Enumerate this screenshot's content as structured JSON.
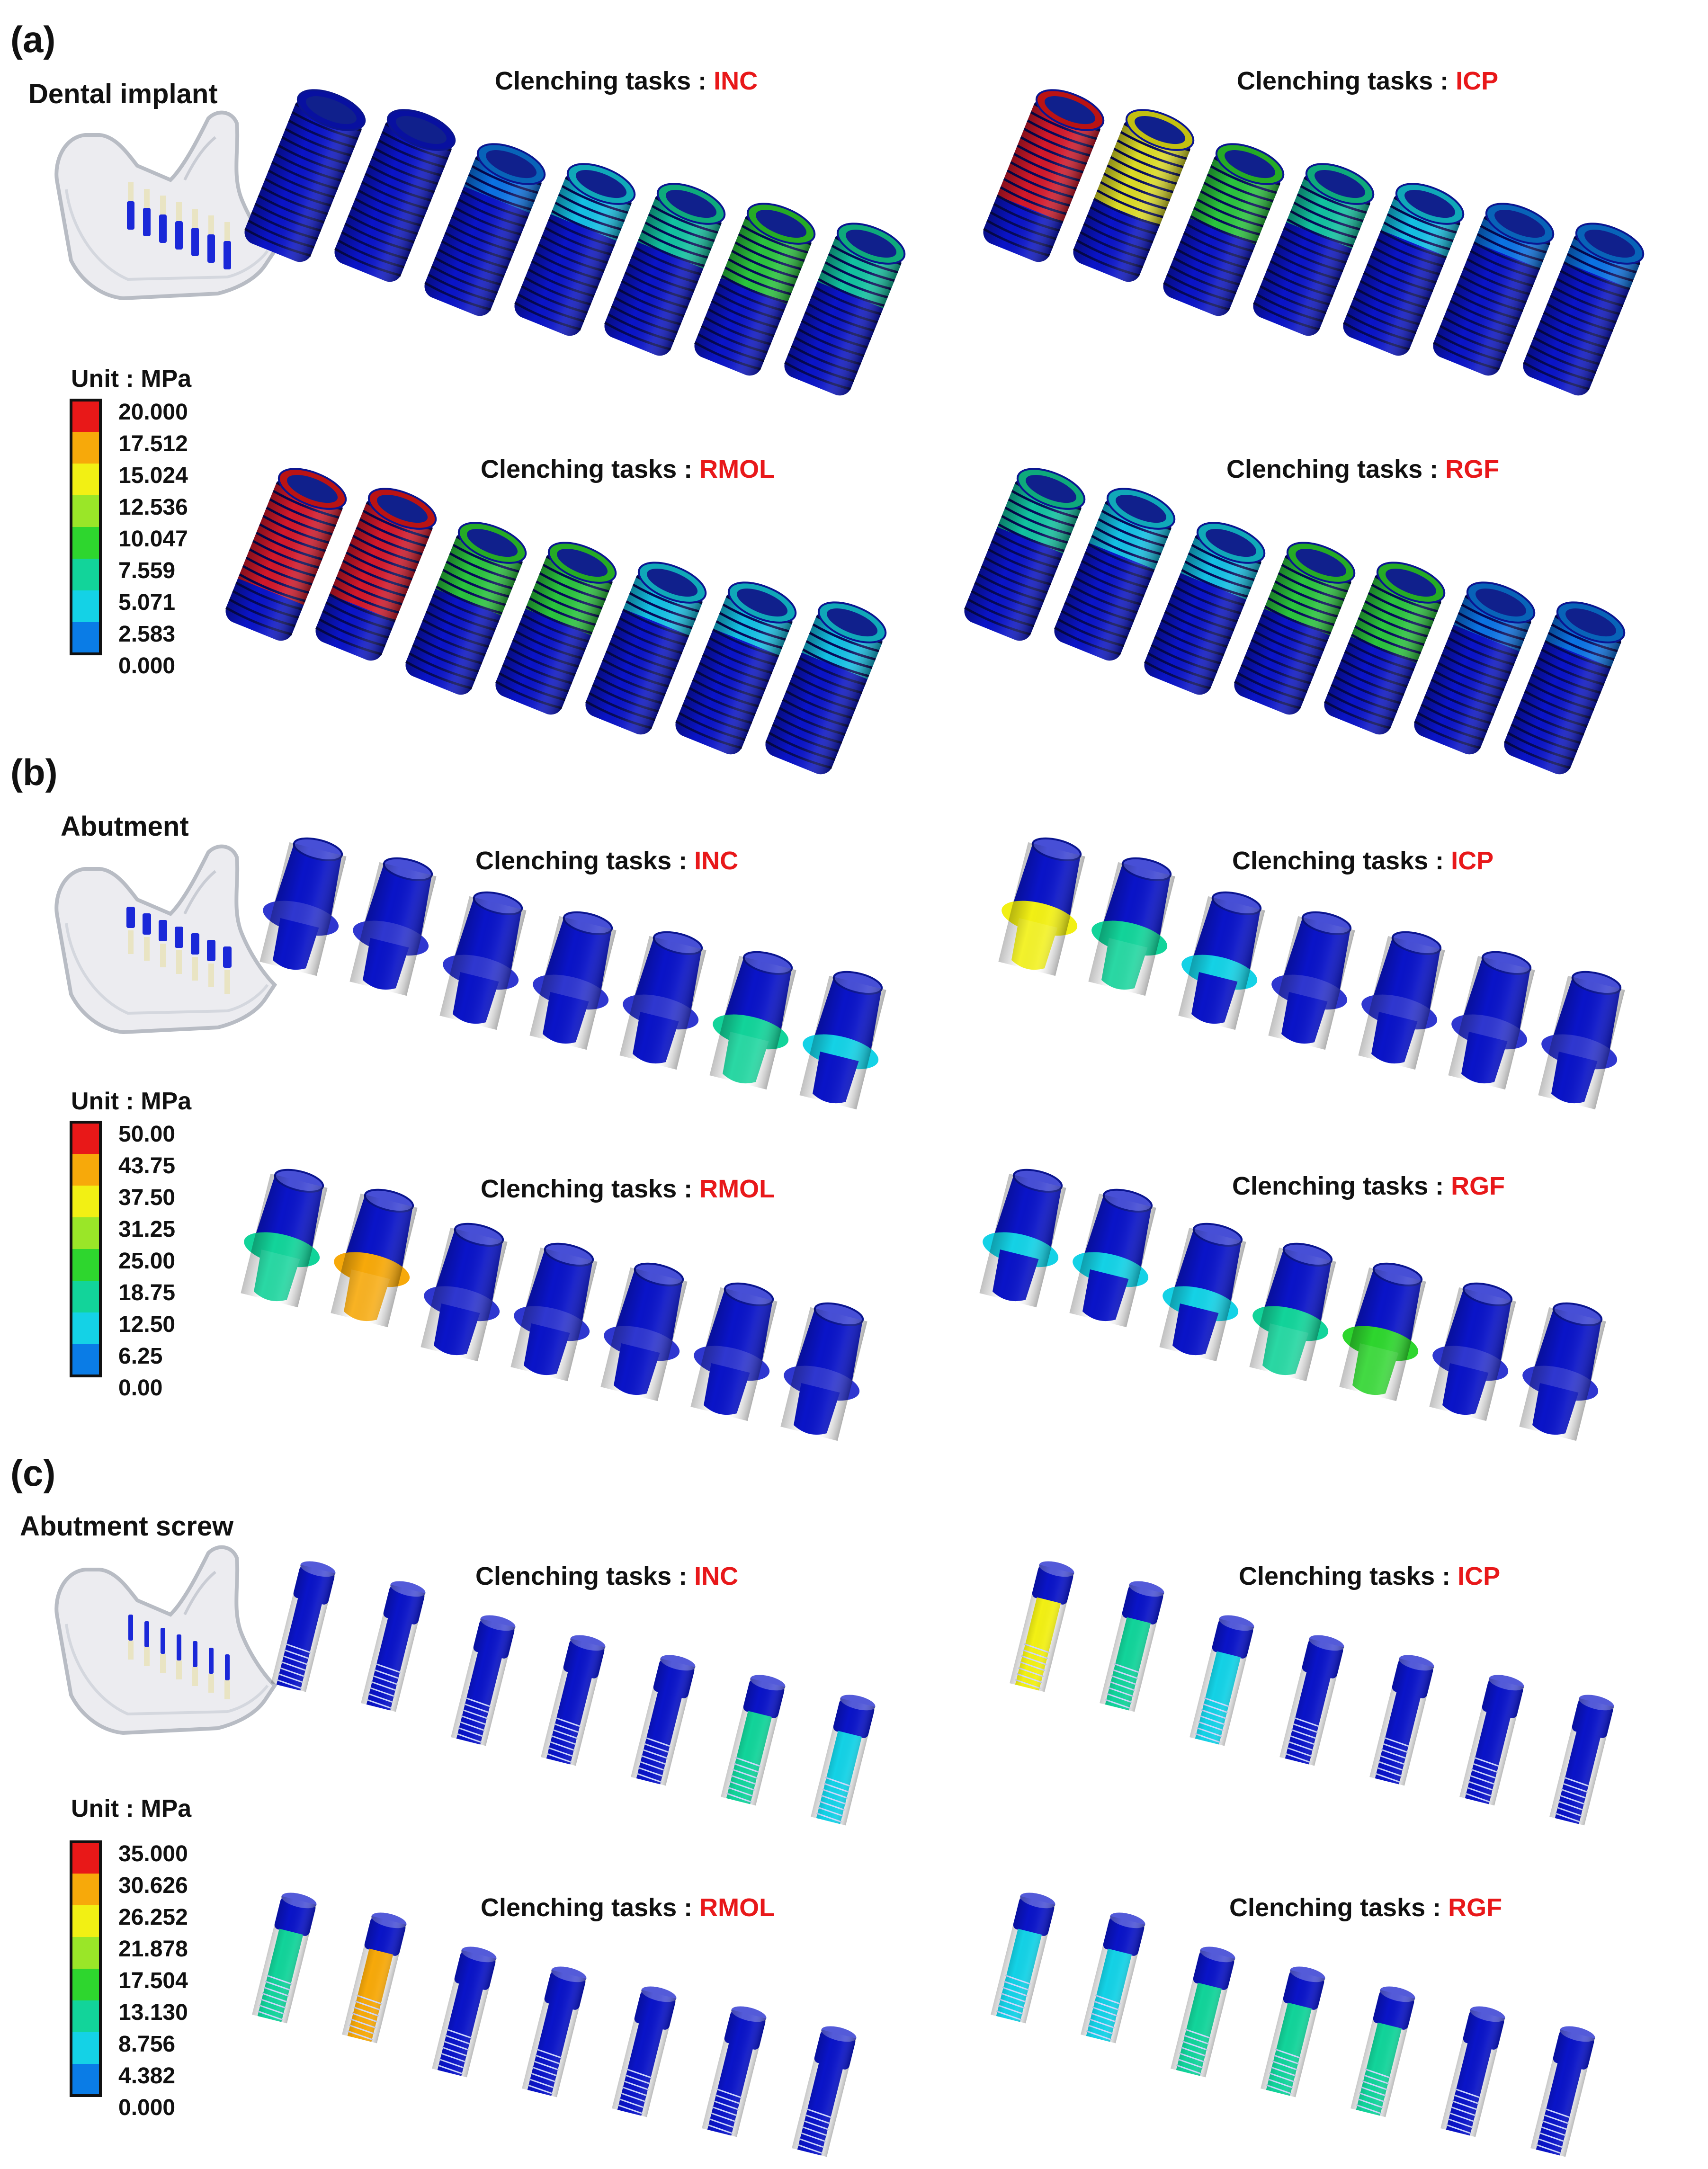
{
  "task_prefix": "Clenching tasks : ",
  "tasks": [
    "INC",
    "ICP",
    "RMOL",
    "RGF"
  ],
  "colormap": [
    "#0a14c8",
    "#0a7ce6",
    "#14d2e6",
    "#12d49a",
    "#2ed62e",
    "#9ae628",
    "#f2f014",
    "#f7a90a",
    "#e81818"
  ],
  "panels": [
    {
      "letter": "(a)",
      "title": "Dental implant",
      "kind": "implant",
      "unit": "Unit : MPa",
      "levels": [
        "20.000",
        "17.512",
        "15.024",
        "12.536",
        "10.047",
        "7.559",
        "5.071",
        "2.583",
        "0.000"
      ],
      "stress": {
        "INC": [
          0.0,
          0.05,
          0.15,
          0.25,
          0.35,
          0.55,
          0.35
        ],
        "ICP": [
          0.95,
          0.75,
          0.55,
          0.35,
          0.2,
          0.1,
          0.1
        ],
        "RMOL": [
          1.0,
          0.95,
          0.45,
          0.45,
          0.2,
          0.2,
          0.25
        ],
        "RGF": [
          0.35,
          0.3,
          0.25,
          0.45,
          0.55,
          0.15,
          0.1
        ]
      }
    },
    {
      "letter": "(b)",
      "title": "Abutment",
      "kind": "abutment",
      "unit": "Unit : MPa",
      "levels": [
        "50.00",
        "43.75",
        "37.50",
        "31.25",
        "25.00",
        "18.75",
        "12.50",
        "6.25",
        "0.00"
      ],
      "stress": {
        "INC": [
          0.0,
          0.0,
          0.0,
          0.0,
          0.05,
          0.35,
          0.25
        ],
        "ICP": [
          0.7,
          0.35,
          0.2,
          0.15,
          0.15,
          0.1,
          0.1
        ],
        "RMOL": [
          0.4,
          0.85,
          0.1,
          0.1,
          0.0,
          0.0,
          0.0
        ],
        "RGF": [
          0.25,
          0.25,
          0.3,
          0.4,
          0.45,
          0.05,
          0.05
        ]
      }
    },
    {
      "letter": "(c)",
      "title": "Abutment screw",
      "kind": "screw",
      "unit": "Unit : MPa",
      "levels": [
        "35.000",
        "30.626",
        "26.252",
        "21.878",
        "17.504",
        "13.130",
        "8.756",
        "4.382",
        "0.000"
      ],
      "stress": {
        "INC": [
          0.0,
          0.0,
          0.05,
          0.05,
          0.1,
          0.4,
          0.3
        ],
        "ICP": [
          0.8,
          0.4,
          0.3,
          0.15,
          0.15,
          0.05,
          0.05
        ],
        "RMOL": [
          0.4,
          0.9,
          0.2,
          0.1,
          0.1,
          0.05,
          0.05
        ],
        "RGF": [
          0.3,
          0.3,
          0.35,
          0.35,
          0.4,
          0.05,
          0.05
        ]
      }
    }
  ]
}
